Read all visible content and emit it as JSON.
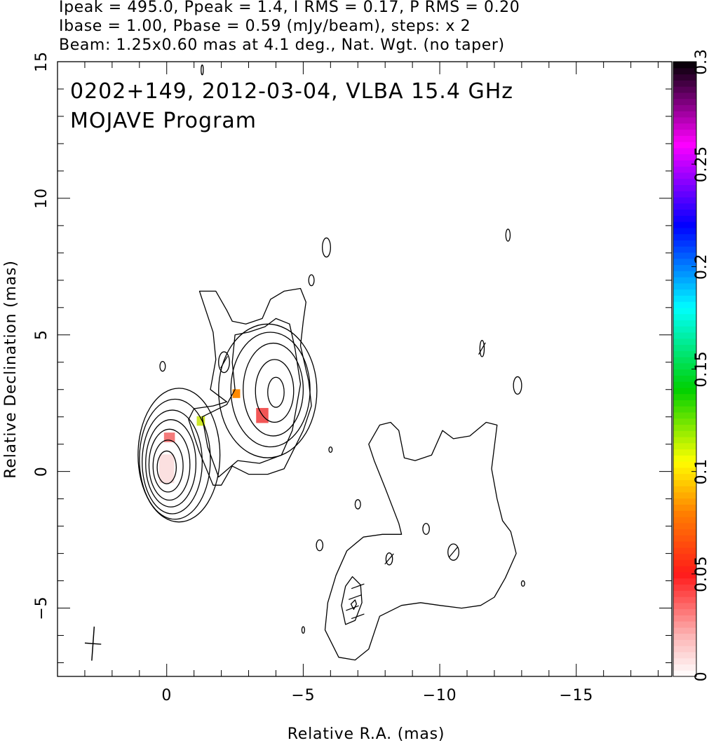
{
  "header": {
    "line1": "Ipeak = 495.0, Ppeak = 1.4, I RMS = 0.17, P RMS = 0.20",
    "line2": "Ibase = 1.00, Pbase = 0.59 (mJy/beam), steps: x 2",
    "line3": "Beam: 1.25x0.60 mas at 4.1 deg., Nat. Wgt. (no taper)"
  },
  "plot_title": {
    "line1": "0202+149, 2012-03-04, VLBA 15.4 GHz",
    "line2": "MOJAVE Program"
  },
  "chart_data": {
    "type": "contour",
    "xlabel": "Relative R.A. (mas)",
    "ylabel": "Relative Declination (mas)",
    "xlim": [
      4,
      -18.5
    ],
    "ylim": [
      -7.5,
      15
    ],
    "x_ticks": [
      0,
      -5,
      -10,
      -15
    ],
    "x_tick_labels": [
      "0",
      "−5",
      "−10",
      "−15"
    ],
    "y_ticks": [
      -5,
      0,
      5,
      10,
      15
    ],
    "y_tick_labels": [
      "−5",
      "0",
      "5",
      "10",
      "15"
    ],
    "core_contours": [
      {
        "cx": 0.0,
        "cy": 0.15,
        "rx": 0.35,
        "ry": 0.6
      },
      {
        "cx": -0.05,
        "cy": 0.2,
        "rx": 0.55,
        "ry": 0.95
      },
      {
        "cx": -0.1,
        "cy": 0.25,
        "rx": 0.75,
        "ry": 1.3
      },
      {
        "cx": -0.15,
        "cy": 0.3,
        "rx": 0.92,
        "ry": 1.6
      },
      {
        "cx": -0.2,
        "cy": 0.35,
        "rx": 1.1,
        "ry": 1.9
      },
      {
        "cx": -0.3,
        "cy": 0.45,
        "rx": 1.3,
        "ry": 2.2
      },
      {
        "cx": -0.45,
        "cy": 0.6,
        "rx": 1.5,
        "ry": 2.45
      }
    ],
    "knot_contours": [
      {
        "cx": -4.0,
        "cy": 2.9,
        "rx": 0.3,
        "ry": 0.55
      },
      {
        "cx": -3.95,
        "cy": 2.95,
        "rx": 0.7,
        "ry": 1.15
      },
      {
        "cx": -3.9,
        "cy": 3.0,
        "rx": 1.1,
        "ry": 1.7
      },
      {
        "cx": -3.8,
        "cy": 3.0,
        "rx": 1.45,
        "ry": 2.1
      },
      {
        "cx": -3.7,
        "cy": 2.95,
        "rx": 1.8,
        "ry": 2.45
      }
    ],
    "envelope_contours": [
      [
        [
          -1.7,
          -0.5
        ],
        [
          -1.2,
          0.7
        ],
        [
          -0.8,
          1.9
        ],
        [
          -1.0,
          2.3
        ],
        [
          -1.7,
          2.4
        ],
        [
          -2.2,
          2.55
        ],
        [
          -1.6,
          3.0
        ],
        [
          -1.8,
          4.1
        ],
        [
          -1.7,
          5.1
        ],
        [
          -1.3,
          6.3
        ],
        [
          -1.2,
          6.6
        ],
        [
          -1.8,
          6.6
        ],
        [
          -2.2,
          5.9
        ],
        [
          -2.4,
          5.5
        ],
        [
          -2.9,
          5.4
        ],
        [
          -3.5,
          5.6
        ],
        [
          -3.8,
          6.3
        ],
        [
          -4.3,
          6.6
        ],
        [
          -4.9,
          6.7
        ],
        [
          -5.1,
          6.2
        ],
        [
          -5.0,
          5.5
        ],
        [
          -4.9,
          4.6
        ],
        [
          -5.2,
          3.3
        ],
        [
          -5.3,
          2.4
        ],
        [
          -5.0,
          1.5
        ],
        [
          -4.7,
          0.9
        ],
        [
          -4.3,
          0.1
        ],
        [
          -3.7,
          -0.1
        ],
        [
          -3.0,
          -0.1
        ],
        [
          -2.4,
          0.2
        ],
        [
          -2.0,
          -0.5
        ]
      ],
      [
        [
          -1.9,
          -0.2
        ],
        [
          -1.5,
          0.9
        ],
        [
          -1.3,
          2.0
        ],
        [
          -2.2,
          2.45
        ],
        [
          -2.5,
          3.0
        ],
        [
          -2.4,
          4.0
        ],
        [
          -2.5,
          5.0
        ],
        [
          -3.0,
          5.1
        ],
        [
          -3.6,
          5.3
        ],
        [
          -4.0,
          5.6
        ],
        [
          -4.5,
          5.4
        ],
        [
          -4.7,
          4.5
        ],
        [
          -4.9,
          3.2
        ],
        [
          -4.6,
          1.5
        ],
        [
          -4.2,
          0.6
        ],
        [
          -3.4,
          0.3
        ],
        [
          -2.6,
          0.4
        ]
      ]
    ],
    "diffuse_contours": [
      [
        [
          -6.2,
          -3.8
        ],
        [
          -5.9,
          -4.8
        ],
        [
          -5.8,
          -5.8
        ],
        [
          -6.3,
          -6.8
        ],
        [
          -6.9,
          -6.9
        ],
        [
          -7.4,
          -6.5
        ],
        [
          -7.8,
          -5.3
        ],
        [
          -8.6,
          -4.9
        ],
        [
          -9.3,
          -4.8
        ],
        [
          -10.0,
          -4.9
        ],
        [
          -10.8,
          -5.0
        ],
        [
          -11.5,
          -4.9
        ],
        [
          -12.0,
          -4.6
        ],
        [
          -12.4,
          -3.9
        ],
        [
          -12.8,
          -3.0
        ],
        [
          -12.6,
          -2.2
        ],
        [
          -12.3,
          -1.8
        ],
        [
          -12.1,
          -1.0
        ],
        [
          -11.9,
          0.1
        ],
        [
          -12.1,
          1.7
        ],
        [
          -11.7,
          1.8
        ],
        [
          -11.1,
          1.3
        ],
        [
          -10.5,
          1.2
        ],
        [
          -10.1,
          1.5
        ],
        [
          -9.7,
          0.6
        ],
        [
          -9.1,
          0.4
        ],
        [
          -8.7,
          0.5
        ],
        [
          -8.5,
          1.5
        ],
        [
          -8.2,
          1.8
        ],
        [
          -7.8,
          1.7
        ],
        [
          -7.4,
          1.0
        ],
        [
          -7.6,
          0.4
        ],
        [
          -8.0,
          -0.6
        ],
        [
          -8.5,
          -1.9
        ],
        [
          -8.6,
          -2.3
        ],
        [
          -7.9,
          -2.3
        ],
        [
          -7.2,
          -2.4
        ],
        [
          -6.6,
          -2.9
        ]
      ],
      [
        [
          -6.55,
          -4.2
        ],
        [
          -6.4,
          -4.9
        ],
        [
          -6.55,
          -5.6
        ],
        [
          -6.9,
          -5.45
        ],
        [
          -7.15,
          -4.8
        ],
        [
          -7.1,
          -4.15
        ],
        [
          -6.8,
          -3.85
        ]
      ],
      [
        [
          -6.9,
          -4.7
        ],
        [
          -6.75,
          -4.85
        ],
        [
          -6.85,
          -5.05
        ],
        [
          -6.95,
          -4.85
        ]
      ]
    ],
    "small_contours": [
      {
        "cx": -5.85,
        "cy": 8.2,
        "rx": 0.15,
        "ry": 0.35
      },
      {
        "cx": -2.1,
        "cy": 4.0,
        "rx": 0.2,
        "ry": 0.38
      },
      {
        "cx": 0.15,
        "cy": 3.85,
        "rx": 0.1,
        "ry": 0.18
      },
      {
        "cx": -5.3,
        "cy": 7.0,
        "rx": 0.1,
        "ry": 0.2
      },
      {
        "cx": -7.0,
        "cy": -1.2,
        "rx": 0.1,
        "ry": 0.17
      },
      {
        "cx": -9.5,
        "cy": -2.1,
        "rx": 0.12,
        "ry": 0.2
      },
      {
        "cx": -8.15,
        "cy": -3.2,
        "rx": 0.12,
        "ry": 0.22
      },
      {
        "cx": -10.5,
        "cy": -2.95,
        "rx": 0.2,
        "ry": 0.3
      },
      {
        "cx": -11.55,
        "cy": 4.5,
        "rx": 0.08,
        "ry": 0.3
      },
      {
        "cx": -12.85,
        "cy": 3.15,
        "rx": 0.15,
        "ry": 0.32
      },
      {
        "cx": -12.5,
        "cy": 8.65,
        "rx": 0.08,
        "ry": 0.22
      },
      {
        "cx": -5.6,
        "cy": -2.7,
        "rx": 0.12,
        "ry": 0.2
      },
      {
        "cx": -6.0,
        "cy": 0.8,
        "rx": 0.06,
        "ry": 0.1
      },
      {
        "cx": -13.05,
        "cy": -4.1,
        "rx": 0.06,
        "ry": 0.1
      },
      {
        "cx": -5.0,
        "cy": -5.8,
        "rx": 0.05,
        "ry": 0.12
      },
      {
        "cx": -1.3,
        "cy": 14.7,
        "rx": 0.04,
        "ry": 0.18
      }
    ],
    "pol_pixels": [
      {
        "x": 0.0,
        "y": 0.1,
        "w": 0.55,
        "h": 1.05,
        "color": "#fbe0e0"
      },
      {
        "x": -0.1,
        "y": 1.25,
        "w": 0.4,
        "h": 0.35,
        "color": "#f47a7a"
      },
      {
        "x": -1.25,
        "y": 1.85,
        "w": 0.3,
        "h": 0.35,
        "color": "#cfe82a"
      },
      {
        "x": -2.55,
        "y": 2.85,
        "w": 0.28,
        "h": 0.32,
        "color": "#ff8a00"
      },
      {
        "x": -3.5,
        "y": 2.05,
        "w": 0.45,
        "h": 0.55,
        "color": "#f25656"
      }
    ],
    "evpa_ticks": [
      {
        "x": -2.1,
        "y": 4.0,
        "angle": 60
      },
      {
        "x": -7.0,
        "y": -4.2,
        "angle": 20
      },
      {
        "x": -6.9,
        "y": -4.6,
        "angle": 20
      },
      {
        "x": -6.8,
        "y": -5.0,
        "angle": 20
      },
      {
        "x": -7.0,
        "y": -5.3,
        "angle": 20
      },
      {
        "x": -10.5,
        "y": -2.95,
        "angle": 50
      },
      {
        "x": -8.15,
        "y": -3.2,
        "angle": 50
      },
      {
        "x": -11.55,
        "y": 4.5,
        "angle": 60
      }
    ],
    "beam": {
      "x": 2.7,
      "y": -6.3,
      "major": 1.25,
      "minor": 0.6,
      "pa": 4.1
    },
    "colorbar": {
      "range": [
        0,
        0.3
      ],
      "ticks": [
        0,
        0.05,
        0.1,
        0.15,
        0.2,
        0.25,
        0.3
      ],
      "tick_labels": [
        "0",
        "0.05",
        "0.1",
        "0.15",
        "0.2",
        "0.25",
        "0.3"
      ],
      "stops": [
        {
          "v": 0.0,
          "color": "#ffffff"
        },
        {
          "v": 0.02,
          "color": "#fcb4b4"
        },
        {
          "v": 0.05,
          "color": "#ff1a1a"
        },
        {
          "v": 0.08,
          "color": "#ff8000"
        },
        {
          "v": 0.105,
          "color": "#ffff00"
        },
        {
          "v": 0.14,
          "color": "#00d000"
        },
        {
          "v": 0.18,
          "color": "#00ffff"
        },
        {
          "v": 0.22,
          "color": "#0000ff"
        },
        {
          "v": 0.26,
          "color": "#ff00ff"
        },
        {
          "v": 0.3,
          "color": "#000000"
        }
      ]
    }
  }
}
